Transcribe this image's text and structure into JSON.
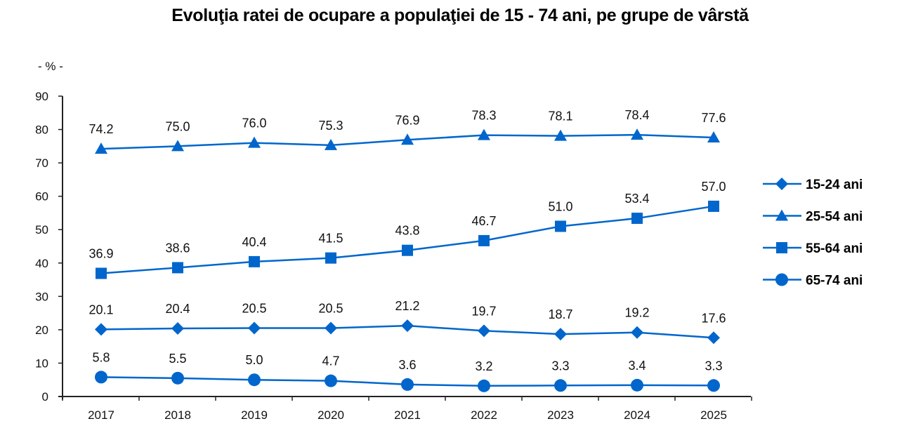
{
  "chart_data": {
    "type": "line",
    "title": "Evoluţia ratei de ocupare a populaţiei de 15 - 74 ani, pe grupe de vârstă",
    "ylabel": "- % -",
    "xlabel": "",
    "categories": [
      "2017",
      "2018",
      "2019",
      "2020",
      "2021",
      "2022",
      "2023",
      "2024",
      "2025"
    ],
    "ylim": [
      0,
      90
    ],
    "yticks": [
      0,
      10,
      20,
      30,
      40,
      50,
      60,
      70,
      80,
      90
    ],
    "grid": false,
    "legend_position": "right",
    "line_color": "#0066CC",
    "series": [
      {
        "name": "15-24 ani",
        "marker": "diamond",
        "values": [
          20.1,
          20.4,
          20.5,
          20.5,
          21.2,
          19.7,
          18.7,
          19.2,
          17.6
        ],
        "labels": [
          "20.1",
          "20.4",
          "20.5",
          "20.5",
          "21.2",
          "19.7",
          "18.7",
          "19.2",
          "17.6"
        ]
      },
      {
        "name": "25-54 ani",
        "marker": "triangle",
        "values": [
          74.2,
          75.0,
          76.0,
          75.3,
          76.9,
          78.3,
          78.1,
          78.4,
          77.6
        ],
        "labels": [
          "74.2",
          "75.0",
          "76.0",
          "75.3",
          "76.9",
          "78.3",
          "78.1",
          "78.4",
          "77.6"
        ]
      },
      {
        "name": "55-64 ani",
        "marker": "square",
        "values": [
          36.9,
          38.6,
          40.4,
          41.5,
          43.8,
          46.7,
          51.0,
          53.4,
          57.0
        ],
        "labels": [
          "36.9",
          "38.6",
          "40.4",
          "41.5",
          "43.8",
          "46.7",
          "51.0",
          "53.4",
          "57.0"
        ]
      },
      {
        "name": "65-74 ani",
        "marker": "circle",
        "values": [
          5.8,
          5.5,
          5.0,
          4.7,
          3.6,
          3.2,
          3.3,
          3.4,
          3.3
        ],
        "labels": [
          "5.8",
          "5.5",
          "5.0",
          "4.7",
          "3.6",
          "3.2",
          "3.3",
          "3.4",
          "3.3"
        ]
      }
    ]
  }
}
